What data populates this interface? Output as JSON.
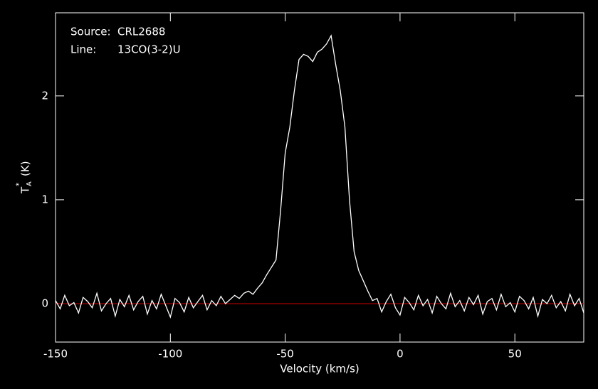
{
  "chart_data": {
    "type": "line",
    "annotations": [
      {
        "label": "Source:",
        "text": "CRL2688"
      },
      {
        "label": "Line:",
        "text": "13CO(3-2)U"
      }
    ],
    "xlabel": "Velocity (km/s)",
    "ylabel": {
      "main": "T",
      "sub": "A",
      "sup": "*",
      "unit": "(K)"
    },
    "xlim": [
      -150,
      80
    ],
    "ylim": [
      -0.37,
      2.8
    ],
    "xticks": [
      -150,
      -100,
      -50,
      0,
      50
    ],
    "yticks": [
      0,
      1,
      2
    ],
    "baseline": {
      "value": 0,
      "color": "#cc0000"
    },
    "series": [
      {
        "name": "CRL2688",
        "color": "#ffffff",
        "x": [
          -150,
          -148,
          -146,
          -144,
          -142,
          -140,
          -138,
          -136,
          -134,
          -132,
          -130,
          -128,
          -126,
          -124,
          -122,
          -120,
          -118,
          -116,
          -114,
          -112,
          -110,
          -108,
          -106,
          -104,
          -102,
          -100,
          -98,
          -96,
          -94,
          -92,
          -90,
          -88,
          -86,
          -84,
          -82,
          -80,
          -78,
          -76,
          -74,
          -72,
          -70,
          -68,
          -66,
          -64,
          -62,
          -60,
          -58,
          -56,
          -54,
          -52,
          -50,
          -48,
          -46,
          -44,
          -42,
          -40,
          -38,
          -36,
          -34,
          -32,
          -30,
          -28,
          -26,
          -24,
          -22,
          -20,
          -18,
          -16,
          -14,
          -12,
          -10,
          -8,
          -6,
          -4,
          -2,
          0,
          2,
          4,
          6,
          8,
          10,
          12,
          14,
          16,
          18,
          20,
          22,
          24,
          26,
          28,
          30,
          32,
          34,
          36,
          38,
          40,
          42,
          44,
          46,
          48,
          50,
          52,
          54,
          56,
          58,
          60,
          62,
          64,
          66,
          68,
          70,
          72,
          74,
          76,
          78,
          80
        ],
        "values": [
          0.03,
          -0.05,
          0.08,
          -0.02,
          0.01,
          -0.09,
          0.06,
          0.02,
          -0.04,
          0.1,
          -0.07,
          0.0,
          0.05,
          -0.12,
          0.04,
          -0.03,
          0.08,
          -0.06,
          0.02,
          0.07,
          -0.1,
          0.03,
          -0.05,
          0.09,
          -0.02,
          -0.13,
          0.05,
          0.01,
          -0.08,
          0.06,
          -0.04,
          0.02,
          0.08,
          -0.06,
          0.03,
          -0.02,
          0.07,
          0.0,
          0.04,
          0.08,
          0.05,
          0.1,
          0.12,
          0.09,
          0.15,
          0.2,
          0.28,
          0.35,
          0.42,
          0.9,
          1.45,
          1.7,
          2.05,
          2.35,
          2.4,
          2.38,
          2.33,
          2.42,
          2.45,
          2.5,
          2.58,
          2.3,
          2.05,
          1.7,
          1.0,
          0.5,
          0.32,
          0.22,
          0.12,
          0.03,
          0.05,
          -0.08,
          0.02,
          0.09,
          -0.04,
          -0.11,
          0.06,
          0.01,
          -0.06,
          0.08,
          -0.02,
          0.04,
          -0.09,
          0.07,
          0.0,
          -0.05,
          0.1,
          -0.03,
          0.03,
          -0.07,
          0.06,
          -0.01,
          0.08,
          -0.1,
          0.02,
          0.05,
          -0.06,
          0.09,
          -0.03,
          0.01,
          -0.08,
          0.07,
          0.03,
          -0.05,
          0.06,
          -0.12,
          0.04,
          0.0,
          0.08,
          -0.04,
          0.02,
          -0.07,
          0.09,
          -0.02,
          0.05,
          -0.09
        ]
      }
    ]
  }
}
